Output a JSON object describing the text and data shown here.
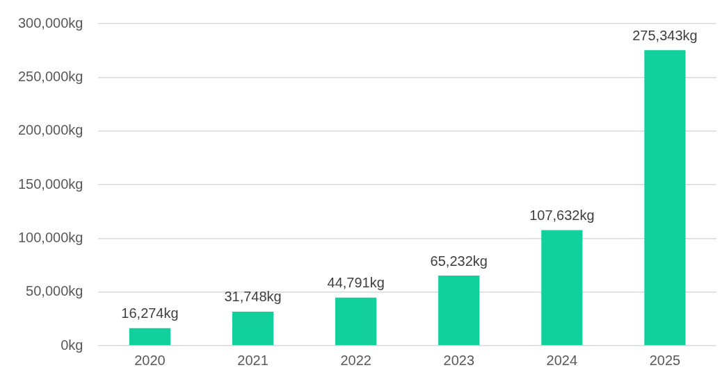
{
  "chart_data": {
    "type": "bar",
    "categories": [
      "2020",
      "2021",
      "2022",
      "2023",
      "2024",
      "2025"
    ],
    "values": [
      16274,
      31748,
      44791,
      65232,
      107632,
      275343
    ],
    "color": "#11d09b",
    "value_labels": [
      "16,274kg",
      "31,748kg",
      "44,791kg",
      "65,232kg",
      "107,632kg",
      "275,343kg"
    ],
    "ylim": [
      0,
      300000
    ],
    "yticks": [
      {
        "value": 0,
        "label": "0kg"
      },
      {
        "value": 50000,
        "label": "50,000kg"
      },
      {
        "value": 100000,
        "label": "100,000kg"
      },
      {
        "value": 150000,
        "label": "150,000kg"
      },
      {
        "value": 200000,
        "label": "200,000kg"
      },
      {
        "value": 250000,
        "label": "250,000kg"
      },
      {
        "value": 300000,
        "label": "300,000kg"
      }
    ],
    "grid": "y",
    "legend": false
  }
}
